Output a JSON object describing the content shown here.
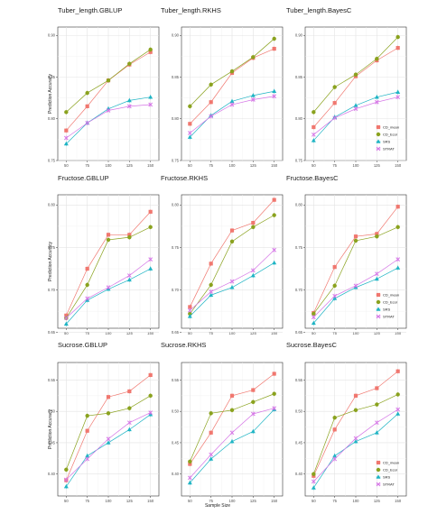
{
  "figure": {
    "xlabel": "Sample Size",
    "ylabel": "Prediction Accuracy",
    "series_style": [
      {
        "name": "CD_mean",
        "color": "#f0776f",
        "shape": "square"
      },
      {
        "name": "CD_Ecol",
        "color": "#8aa21e",
        "shape": "circle"
      },
      {
        "name": "SRS",
        "color": "#1eb4c4",
        "shape": "triangle"
      },
      {
        "name": "STRAT",
        "color": "#d575e6",
        "shape": "cross"
      }
    ]
  },
  "chart_data": [
    {
      "type": "line",
      "title": "Tuber_length.GBLUP",
      "x": [
        50,
        75,
        100,
        125,
        150
      ],
      "yticks": [
        0.75,
        0.8,
        0.85,
        0.9
      ],
      "ylim": [
        0.75,
        0.91
      ],
      "grid": true,
      "legend": "",
      "series": [
        {
          "name": "CD_mean",
          "values": [
            0.786,
            0.815,
            0.846,
            0.865,
            0.88
          ]
        },
        {
          "name": "CD_Ecol",
          "values": [
            0.808,
            0.831,
            0.846,
            0.866,
            0.883
          ]
        },
        {
          "name": "SRS",
          "values": [
            0.77,
            0.795,
            0.812,
            0.822,
            0.826
          ]
        },
        {
          "name": "STRAT",
          "values": [
            0.777,
            0.795,
            0.81,
            0.815,
            0.817
          ]
        }
      ]
    },
    {
      "type": "line",
      "title": "Tuber_length.RKHS",
      "x": [
        50,
        75,
        100,
        125,
        150
      ],
      "yticks": [
        0.75,
        0.8,
        0.85,
        0.9
      ],
      "ylim": [
        0.75,
        0.91
      ],
      "grid": true,
      "legend": "",
      "series": [
        {
          "name": "CD_mean",
          "values": [
            0.794,
            0.82,
            0.855,
            0.873,
            0.884
          ]
        },
        {
          "name": "CD_Ecol",
          "values": [
            0.815,
            0.841,
            0.857,
            0.874,
            0.896
          ]
        },
        {
          "name": "SRS",
          "values": [
            0.778,
            0.804,
            0.821,
            0.828,
            0.833
          ]
        },
        {
          "name": "STRAT",
          "values": [
            0.783,
            0.803,
            0.817,
            0.823,
            0.827
          ]
        }
      ]
    },
    {
      "type": "line",
      "title": "Tuber_length.BayesC",
      "x": [
        50,
        75,
        100,
        125,
        150
      ],
      "yticks": [
        0.75,
        0.8,
        0.85,
        0.9
      ],
      "ylim": [
        0.75,
        0.91
      ],
      "grid": true,
      "legend": "bottom-right",
      "series": [
        {
          "name": "CD_mean",
          "values": [
            0.79,
            0.819,
            0.851,
            0.87,
            0.885
          ]
        },
        {
          "name": "CD_Ecol",
          "values": [
            0.808,
            0.838,
            0.853,
            0.872,
            0.898
          ]
        },
        {
          "name": "SRS",
          "values": [
            0.774,
            0.802,
            0.816,
            0.826,
            0.832
          ]
        },
        {
          "name": "STRAT",
          "values": [
            0.781,
            0.801,
            0.812,
            0.82,
            0.826
          ]
        }
      ]
    },
    {
      "type": "line",
      "title": "Fructose.GBLUP",
      "x": [
        50,
        75,
        100,
        125,
        150
      ],
      "yticks": [
        0.65,
        0.7,
        0.75,
        0.8
      ],
      "ylim": [
        0.655,
        0.812
      ],
      "grid": true,
      "legend": "",
      "series": [
        {
          "name": "CD_mean",
          "values": [
            0.67,
            0.725,
            0.765,
            0.765,
            0.792
          ]
        },
        {
          "name": "CD_Ecol",
          "values": [
            0.667,
            0.706,
            0.759,
            0.762,
            0.774
          ]
        },
        {
          "name": "SRS",
          "values": [
            0.66,
            0.688,
            0.701,
            0.712,
            0.725
          ]
        },
        {
          "name": "STRAT",
          "values": [
            0.667,
            0.69,
            0.703,
            0.717,
            0.736
          ]
        }
      ]
    },
    {
      "type": "line",
      "title": "Fructose.RKHS",
      "x": [
        50,
        75,
        100,
        125,
        150
      ],
      "yticks": [
        0.65,
        0.7,
        0.75,
        0.8
      ],
      "ylim": [
        0.655,
        0.812
      ],
      "grid": true,
      "legend": "",
      "series": [
        {
          "name": "CD_mean",
          "values": [
            0.68,
            0.731,
            0.77,
            0.779,
            0.806
          ]
        },
        {
          "name": "CD_Ecol",
          "values": [
            0.672,
            0.706,
            0.757,
            0.774,
            0.788
          ]
        },
        {
          "name": "SRS",
          "values": [
            0.669,
            0.694,
            0.703,
            0.717,
            0.732
          ]
        },
        {
          "name": "STRAT",
          "values": [
            0.676,
            0.698,
            0.71,
            0.723,
            0.747
          ]
        }
      ]
    },
    {
      "type": "line",
      "title": "Fructose.BayesC",
      "x": [
        50,
        75,
        100,
        125,
        150
      ],
      "yticks": [
        0.65,
        0.7,
        0.75,
        0.8
      ],
      "ylim": [
        0.655,
        0.812
      ],
      "grid": true,
      "legend": "bottom-right",
      "series": [
        {
          "name": "CD_mean",
          "values": [
            0.673,
            0.727,
            0.763,
            0.766,
            0.798
          ]
        },
        {
          "name": "CD_Ecol",
          "values": [
            0.672,
            0.705,
            0.758,
            0.763,
            0.774
          ]
        },
        {
          "name": "SRS",
          "values": [
            0.661,
            0.69,
            0.703,
            0.713,
            0.726
          ]
        },
        {
          "name": "STRAT",
          "values": [
            0.668,
            0.693,
            0.705,
            0.719,
            0.736
          ]
        }
      ]
    },
    {
      "type": "line",
      "title": "Sucrose.GBLUP",
      "x": [
        50,
        75,
        100,
        125,
        150
      ],
      "yticks": [
        0.4,
        0.45,
        0.5,
        0.55
      ],
      "ylim": [
        0.365,
        0.578
      ],
      "grid": true,
      "legend": "",
      "series": [
        {
          "name": "CD_mean",
          "values": [
            0.39,
            0.469,
            0.523,
            0.532,
            0.558
          ]
        },
        {
          "name": "CD_Ecol",
          "values": [
            0.407,
            0.493,
            0.497,
            0.505,
            0.525
          ]
        },
        {
          "name": "SRS",
          "values": [
            0.38,
            0.429,
            0.45,
            0.471,
            0.495
          ]
        },
        {
          "name": "STRAT",
          "values": [
            0.391,
            0.424,
            0.456,
            0.482,
            0.498
          ]
        }
      ]
    },
    {
      "type": "line",
      "title": "Sucrose.RKHS",
      "x": [
        50,
        75,
        100,
        125,
        150
      ],
      "yticks": [
        0.4,
        0.45,
        0.5,
        0.55
      ],
      "ylim": [
        0.365,
        0.578
      ],
      "grid": true,
      "legend": "",
      "series": [
        {
          "name": "CD_mean",
          "values": [
            0.416,
            0.466,
            0.525,
            0.534,
            0.56
          ]
        },
        {
          "name": "CD_Ecol",
          "values": [
            0.42,
            0.497,
            0.502,
            0.515,
            0.528
          ]
        },
        {
          "name": "SRS",
          "values": [
            0.386,
            0.424,
            0.452,
            0.468,
            0.503
          ]
        },
        {
          "name": "STRAT",
          "values": [
            0.394,
            0.431,
            0.466,
            0.496,
            0.505
          ]
        }
      ]
    },
    {
      "type": "line",
      "title": "Sucrose.BayesC",
      "x": [
        50,
        75,
        100,
        125,
        150
      ],
      "yticks": [
        0.4,
        0.45,
        0.5,
        0.55
      ],
      "ylim": [
        0.365,
        0.578
      ],
      "grid": true,
      "legend": "bottom-right",
      "series": [
        {
          "name": "CD_mean",
          "values": [
            0.397,
            0.471,
            0.525,
            0.537,
            0.564
          ]
        },
        {
          "name": "CD_Ecol",
          "values": [
            0.4,
            0.49,
            0.502,
            0.511,
            0.527
          ]
        },
        {
          "name": "SRS",
          "values": [
            0.378,
            0.429,
            0.452,
            0.466,
            0.496
          ]
        },
        {
          "name": "STRAT",
          "values": [
            0.388,
            0.424,
            0.457,
            0.482,
            0.503
          ]
        }
      ]
    }
  ]
}
